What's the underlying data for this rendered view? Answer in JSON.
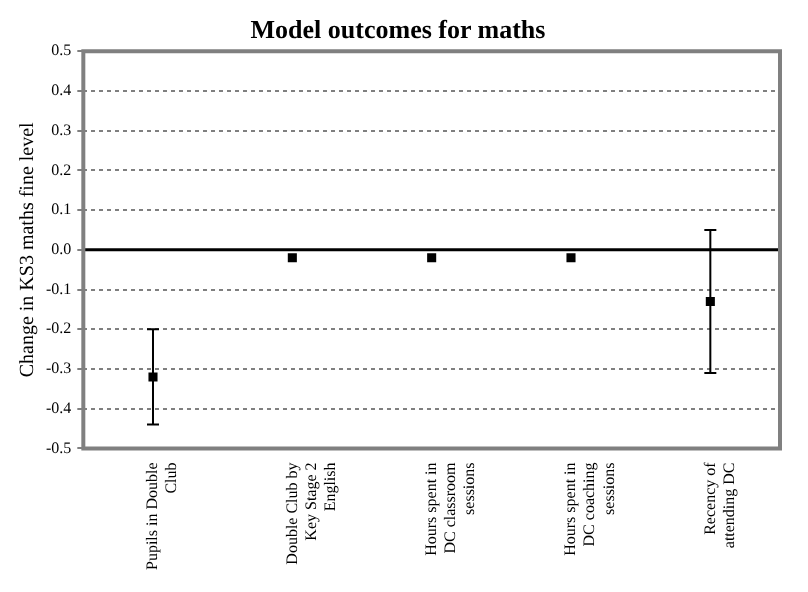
{
  "chart_data": {
    "type": "scatter",
    "title": "Model outcomes for maths",
    "ylabel": "Change in KS3 maths fine level",
    "categories": [
      "Pupils in Double Club",
      "Double Club by Key Stage 2 English",
      "Hours spent in DC classroom sessions",
      "Hours spent in DC coaching sessions",
      "Recency of attending DC"
    ],
    "series": [
      {
        "color": "#000000",
        "values": [
          -0.32,
          -0.02,
          -0.02,
          -0.02,
          -0.13
        ],
        "errors": [
          [
            -0.44,
            -0.2
          ],
          null,
          null,
          null,
          [
            -0.31,
            0.05
          ]
        ]
      }
    ],
    "ylim": [
      -0.5,
      0.5
    ],
    "yticks": [
      -0.5,
      -0.4,
      -0.3,
      -0.2,
      -0.1,
      {
        "value": 0,
        "label": "0.0"
      },
      0.1,
      0.2,
      0.3,
      0.4,
      0.5
    ],
    "ref_lines": [
      {
        "axis": "y",
        "value": 0,
        "color": "#000000"
      }
    ],
    "grid": "y",
    "marker": "square",
    "legend": false
  }
}
